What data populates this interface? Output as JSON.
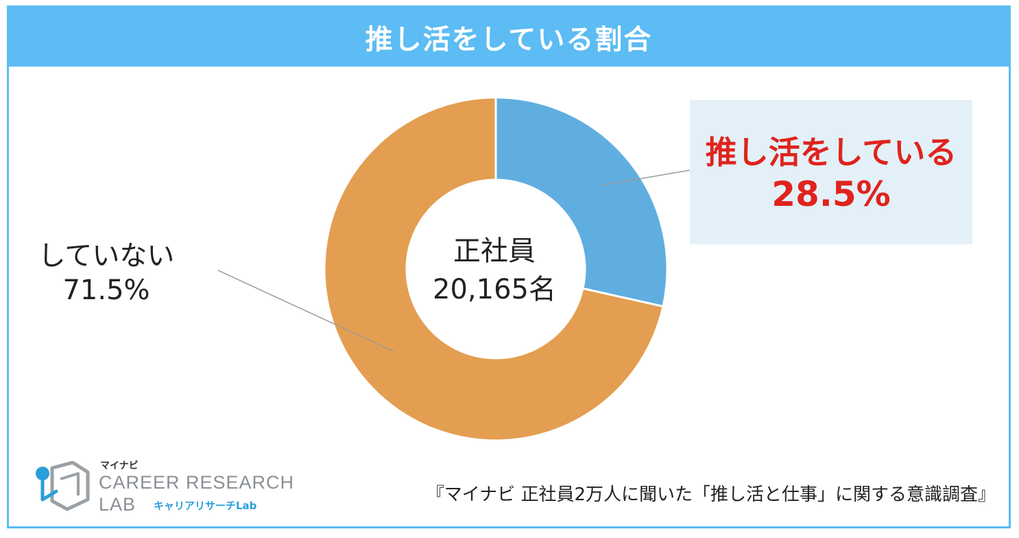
{
  "title": "推し活をしている割合",
  "center_label": {
    "line1": "正社員",
    "line2": "20,165名"
  },
  "labels": {
    "active_label": "推し活をしている",
    "active_value": "28.5%",
    "inactive_label": "していない",
    "inactive_value": "71.5%"
  },
  "chart_data": {
    "type": "pie",
    "variant": "donut",
    "title": "推し活をしている割合",
    "center_text": [
      "正社員",
      "20,165名"
    ],
    "slices": [
      {
        "label": "推し活をしている",
        "value": 28.5,
        "color": "#60aee0"
      },
      {
        "label": "していない",
        "value": 71.5,
        "color": "#e39e51"
      }
    ],
    "start_angle": "12 o'clock",
    "direction": "clockwise"
  },
  "logo": {
    "small": "マイナビ",
    "main": "CAREER RESEARCH",
    "lab": "LAB",
    "sub": "キャリアリサーチLab"
  },
  "source": "『マイナビ 正社員2万人に聞いた「推し活と仕事」に関する意識調査』",
  "colors": {
    "frame": "#5cbcf3",
    "accent_text": "#e0231d",
    "callout_bg": "#e3f0f8"
  }
}
